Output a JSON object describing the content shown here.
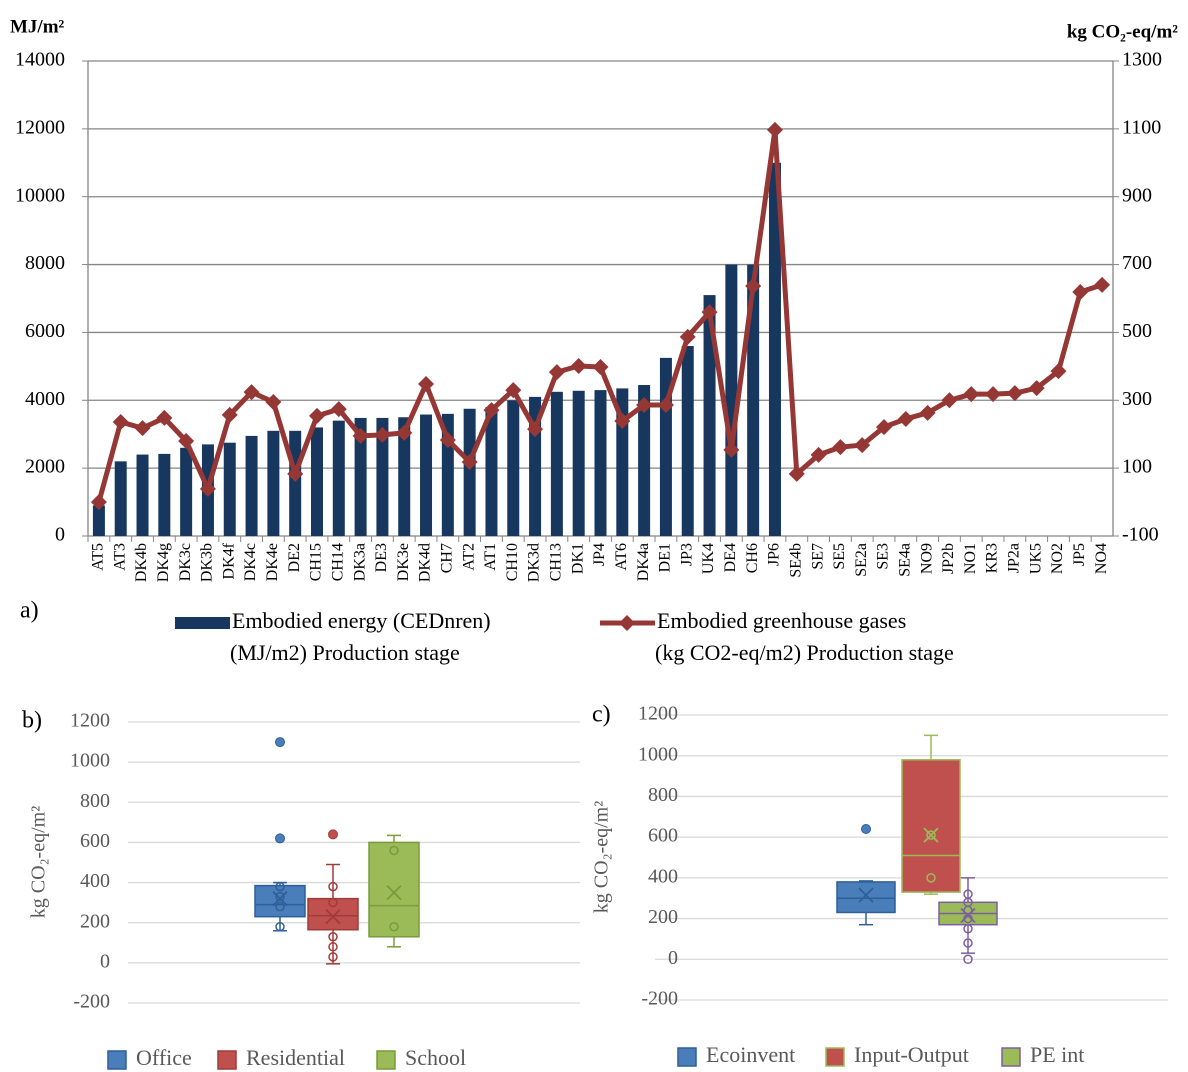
{
  "chart_data": [
    {
      "type": "bar",
      "label": "a)",
      "ylabel": "MJ/m²",
      "y2label": "kg CO₂-eq/m²",
      "categories": [
        "AT5",
        "AT3",
        "DK4b",
        "DK4g",
        "DK3c",
        "DK3b",
        "DK4f",
        "DK4c",
        "DK4e",
        "DE2",
        "CH15",
        "CH14",
        "DK3a",
        "DE3",
        "DK3e",
        "DK4d",
        "CH7",
        "AT2",
        "AT1",
        "CH10",
        "DK3d",
        "CH13",
        "DK1",
        "JP4",
        "AT6",
        "DK4a",
        "DE1",
        "JP3",
        "UK4",
        "DE4",
        "CH6",
        "JP6",
        "SE4b",
        "SE7",
        "SE5",
        "SE2a",
        "SE3",
        "SE4a",
        "NO9",
        "JP2b",
        "NO1",
        "KR3",
        "JP2a",
        "UK5",
        "NO2",
        "JP5",
        "NO4"
      ],
      "series": [
        {
          "name": [
            "Embodied energy (CEDnren)",
            "(MJ/m2) Production stage"
          ],
          "color": "#17375e",
          "values": [
            900,
            2200,
            2400,
            2420,
            2600,
            2700,
            2750,
            2950,
            3100,
            3100,
            3200,
            3400,
            3480,
            3480,
            3500,
            3580,
            3600,
            3750,
            3800,
            4000,
            4100,
            4250,
            4280,
            4300,
            4350,
            4450,
            5250,
            5600,
            7100,
            8000,
            8000,
            11000,
            null,
            null,
            null,
            null,
            null,
            null,
            null,
            null,
            null,
            null,
            null,
            null,
            null,
            null,
            null
          ]
        },
        {
          "name": [
            "Embodied greenhouse gases",
            "(kg CO2-eq/m2) Production stage"
          ],
          "type": "line",
          "axis": "y2",
          "color": "#953735",
          "values": [
            0,
            236,
            218,
            248,
            180,
            39,
            257,
            324,
            295,
            83,
            254,
            274,
            195,
            198,
            204,
            348,
            183,
            118,
            271,
            330,
            215,
            383,
            401,
            398,
            239,
            286,
            286,
            487,
            560,
            154,
            637,
            1097,
            83,
            139,
            162,
            168,
            221,
            245,
            263,
            300,
            318,
            318,
            321,
            336,
            386,
            619,
            640
          ]
        }
      ],
      "ylim": [
        0,
        14000
      ],
      "yticks": [
        0,
        2000,
        4000,
        6000,
        8000,
        10000,
        12000,
        14000
      ],
      "y2lim": [
        -100,
        1300
      ],
      "y2ticks": [
        -100,
        100,
        300,
        500,
        700,
        900,
        1100,
        1300
      ],
      "grid": true
    },
    {
      "type": "box",
      "label": "b)",
      "ylabel": "kg CO₂-eq/m²",
      "ylim": [
        -200,
        1200
      ],
      "yticks": [
        -200,
        0,
        200,
        400,
        600,
        800,
        1000,
        1200
      ],
      "grid": true,
      "series": [
        {
          "name": "Office",
          "color": "#4a7ebb",
          "edge": "#2e5f98",
          "min": 160,
          "q1": 230,
          "median": 290,
          "q3": 385,
          "max": 400,
          "mean": 320,
          "points": [
            380,
            330,
            280,
            180
          ],
          "outliers": [
            620,
            1100
          ]
        },
        {
          "name": "Residential",
          "color": "#c0504d",
          "edge": "#a03b38",
          "min": -5,
          "q1": 165,
          "median": 235,
          "q3": 320,
          "max": 490,
          "mean": 230,
          "points": [
            380,
            300,
            130,
            80,
            30
          ],
          "outliers": [
            640
          ]
        },
        {
          "name": "School",
          "color": "#9bbb59",
          "edge": "#7b9a3a",
          "min": 80,
          "q1": 130,
          "median": 285,
          "q3": 600,
          "max": 635,
          "mean": 350,
          "points": [
            560,
            180
          ],
          "outliers": []
        }
      ]
    },
    {
      "type": "box",
      "label": "c)",
      "ylabel": "kg CO₂-eq/m²",
      "ylim": [
        -200,
        1200
      ],
      "yticks": [
        -200,
        0,
        200,
        400,
        600,
        800,
        1000,
        1200
      ],
      "grid": true,
      "series": [
        {
          "name": "Ecoinvent",
          "color": "#4a7ebb",
          "edge": "#2e5f98",
          "min": 170,
          "q1": 230,
          "median": 300,
          "q3": 380,
          "max": 385,
          "mean": 315,
          "points": [],
          "outliers": [
            640
          ]
        },
        {
          "name": "Input-Output",
          "color": "#c0504d",
          "edge": "#9bbb59",
          "min": 320,
          "q1": 330,
          "median": 510,
          "q3": 980,
          "max": 1100,
          "mean": 610,
          "points": [
            400,
            610
          ],
          "outliers": []
        },
        {
          "name": "PE int",
          "color": "#9bbb59",
          "edge": "#7d5fa0",
          "min": 30,
          "q1": 170,
          "median": 225,
          "q3": 280,
          "max": 400,
          "mean": 215,
          "points": [
            320,
            280,
            240,
            200,
            150,
            80,
            0
          ],
          "outliers": []
        }
      ]
    }
  ]
}
